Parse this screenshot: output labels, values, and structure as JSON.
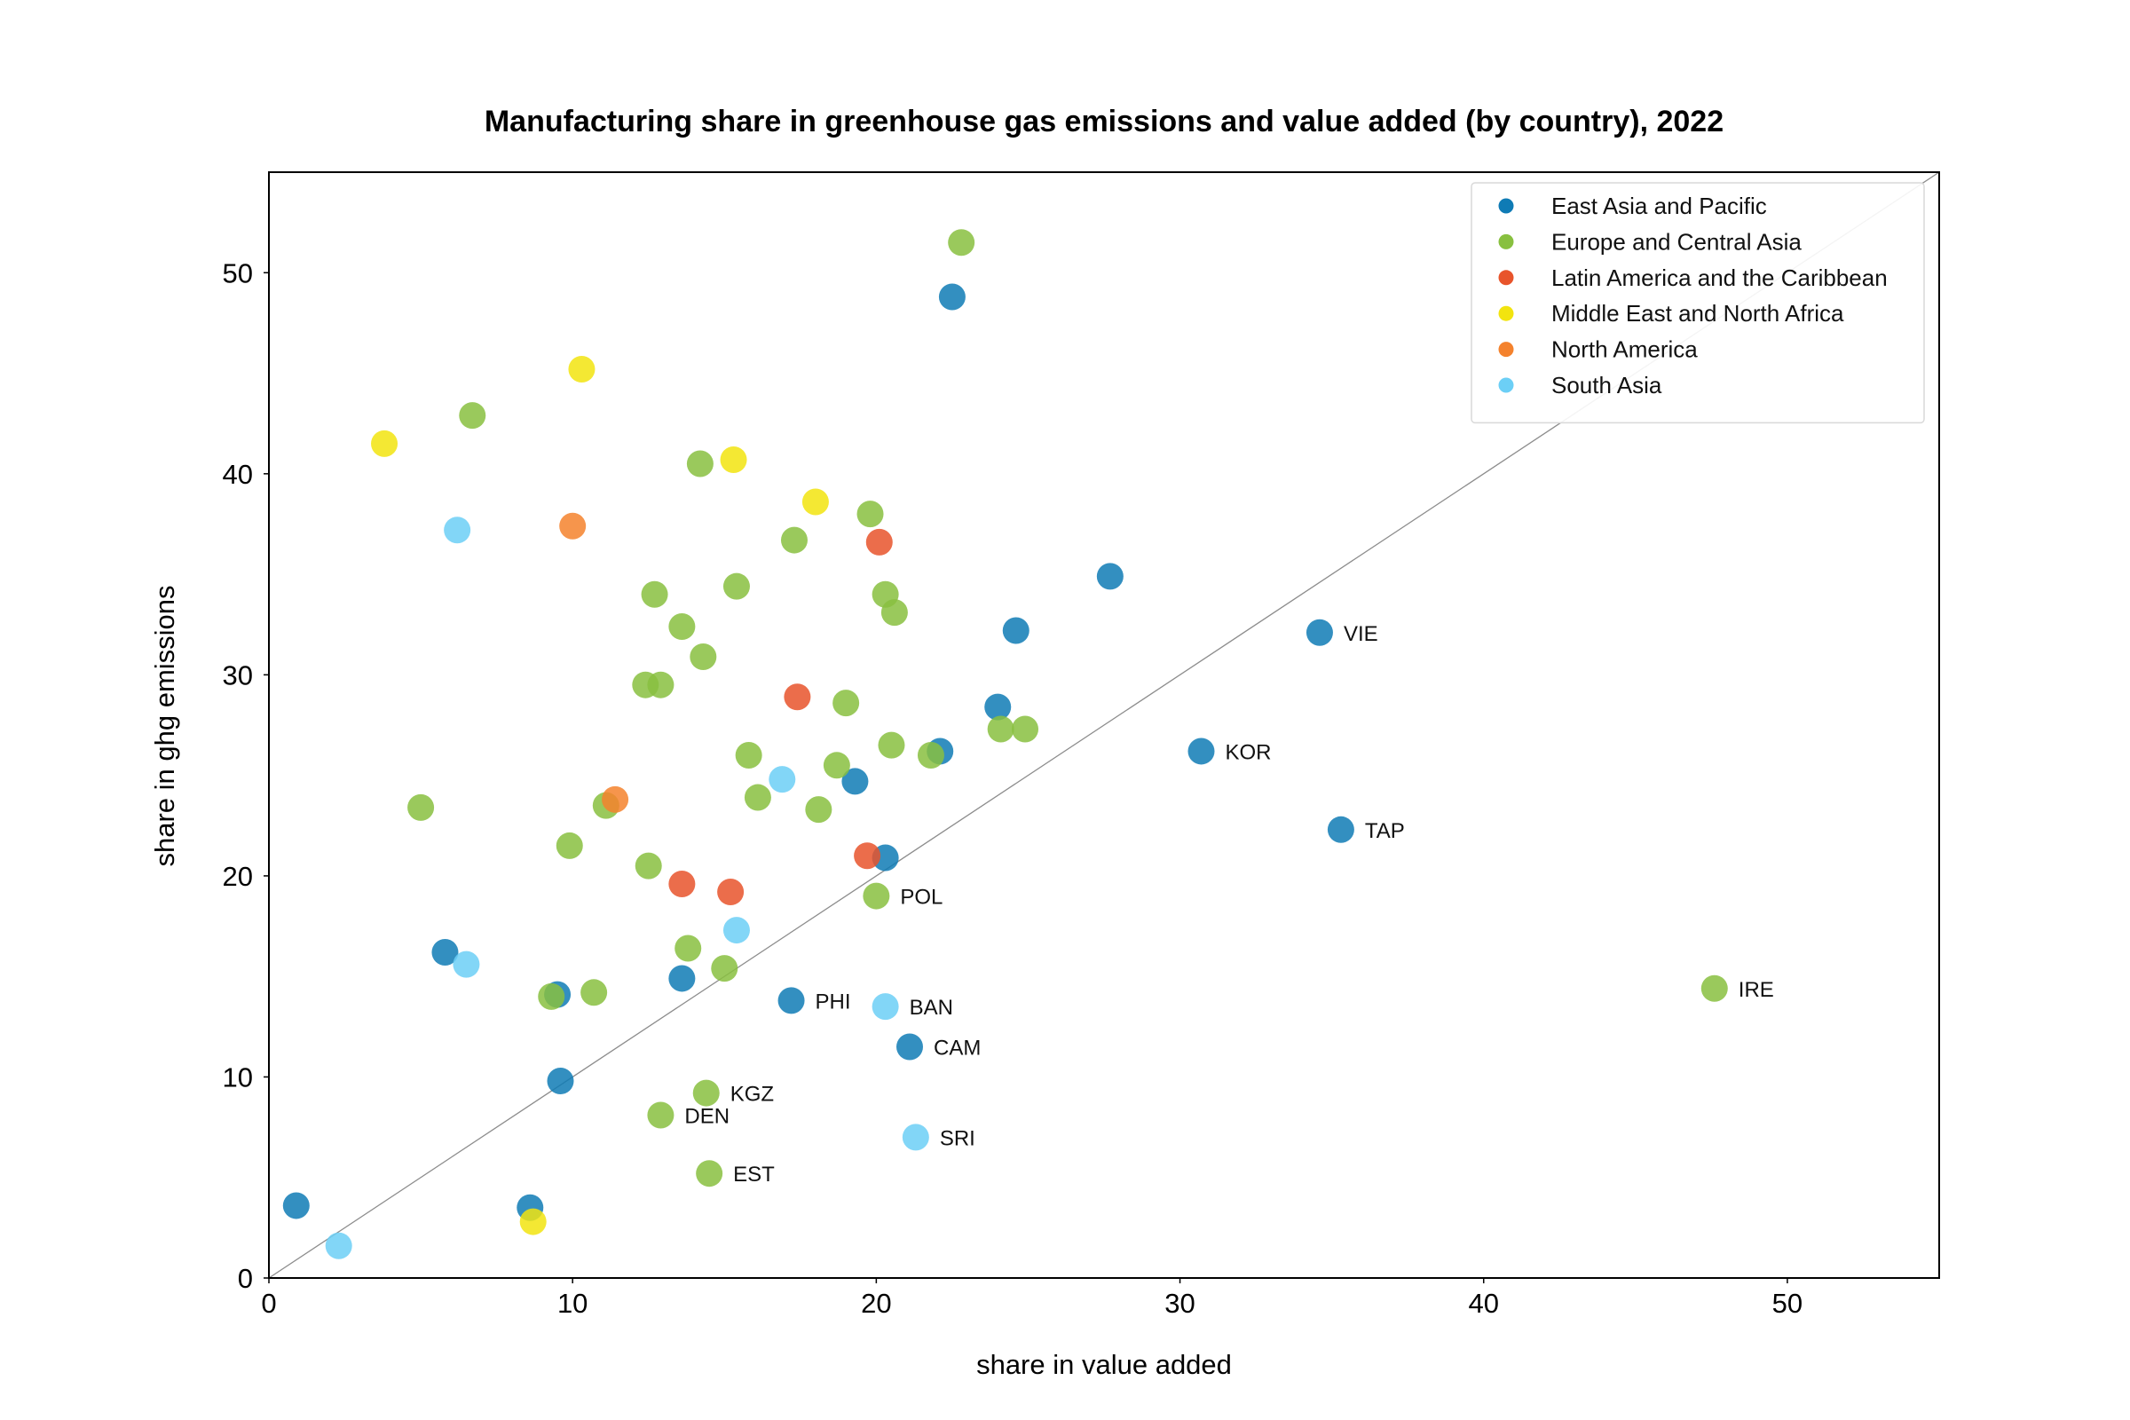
{
  "chart_data": {
    "type": "scatter",
    "title": "Manufacturing share in greenhouse gas emissions and value added (by country), 2022",
    "xlabel": "share in value added",
    "ylabel": "share in ghg emissions",
    "xlim": [
      0,
      55
    ],
    "ylim": [
      0,
      55
    ],
    "xticks": [
      0,
      10,
      20,
      30,
      40,
      50
    ],
    "yticks": [
      0,
      10,
      20,
      30,
      40,
      50
    ],
    "grid": false,
    "legend_position": "top-right",
    "reference_line": "y = x",
    "series": [
      {
        "name": "East Asia and Pacific",
        "color": "#0f7bb5",
        "points": [
          {
            "x": 0.9,
            "y": 3.6
          },
          {
            "x": 8.6,
            "y": 3.5
          },
          {
            "x": 9.6,
            "y": 9.8
          },
          {
            "x": 9.5,
            "y": 14.1
          },
          {
            "x": 5.8,
            "y": 16.2
          },
          {
            "x": 13.6,
            "y": 14.9
          },
          {
            "x": 17.2,
            "y": 13.8,
            "label": "PHI"
          },
          {
            "x": 21.1,
            "y": 11.5,
            "label": "CAM"
          },
          {
            "x": 20.3,
            "y": 20.9
          },
          {
            "x": 19.3,
            "y": 24.7
          },
          {
            "x": 22.1,
            "y": 26.2
          },
          {
            "x": 24.0,
            "y": 28.4
          },
          {
            "x": 24.6,
            "y": 32.2
          },
          {
            "x": 27.7,
            "y": 34.9
          },
          {
            "x": 22.5,
            "y": 48.8
          },
          {
            "x": 30.7,
            "y": 26.2,
            "label": "KOR"
          },
          {
            "x": 34.6,
            "y": 32.1,
            "label": "VIE"
          },
          {
            "x": 35.3,
            "y": 22.3,
            "label": "TAP"
          }
        ]
      },
      {
        "name": "Europe and Central Asia",
        "color": "#88c03f",
        "points": [
          {
            "x": 22.8,
            "y": 51.5
          },
          {
            "x": 6.7,
            "y": 42.9
          },
          {
            "x": 14.2,
            "y": 40.5
          },
          {
            "x": 19.8,
            "y": 38.0
          },
          {
            "x": 17.3,
            "y": 36.7
          },
          {
            "x": 12.7,
            "y": 34.0
          },
          {
            "x": 15.4,
            "y": 34.4
          },
          {
            "x": 20.3,
            "y": 34.0
          },
          {
            "x": 20.6,
            "y": 33.1
          },
          {
            "x": 13.6,
            "y": 32.4
          },
          {
            "x": 14.3,
            "y": 30.9
          },
          {
            "x": 12.4,
            "y": 29.5
          },
          {
            "x": 12.9,
            "y": 29.5
          },
          {
            "x": 19.0,
            "y": 28.6
          },
          {
            "x": 15.8,
            "y": 26.0
          },
          {
            "x": 18.7,
            "y": 25.5
          },
          {
            "x": 20.5,
            "y": 26.5
          },
          {
            "x": 21.8,
            "y": 26.0
          },
          {
            "x": 24.1,
            "y": 27.3
          },
          {
            "x": 24.9,
            "y": 27.3
          },
          {
            "x": 16.1,
            "y": 23.9
          },
          {
            "x": 18.1,
            "y": 23.3
          },
          {
            "x": 11.1,
            "y": 23.5
          },
          {
            "x": 5.0,
            "y": 23.4
          },
          {
            "x": 9.9,
            "y": 21.5
          },
          {
            "x": 12.5,
            "y": 20.5
          },
          {
            "x": 20.0,
            "y": 19.0,
            "label": "POL"
          },
          {
            "x": 13.8,
            "y": 16.4
          },
          {
            "x": 15.0,
            "y": 15.4
          },
          {
            "x": 9.3,
            "y": 14.0
          },
          {
            "x": 10.7,
            "y": 14.2
          },
          {
            "x": 14.4,
            "y": 9.2,
            "label": "KGZ"
          },
          {
            "x": 12.9,
            "y": 8.1,
            "label": "DEN"
          },
          {
            "x": 14.5,
            "y": 5.2,
            "label": "EST"
          },
          {
            "x": 47.6,
            "y": 14.4,
            "label": "IRE"
          }
        ]
      },
      {
        "name": "Latin America and the Caribbean",
        "color": "#e8542b",
        "points": [
          {
            "x": 20.1,
            "y": 36.6
          },
          {
            "x": 17.4,
            "y": 28.9
          },
          {
            "x": 19.7,
            "y": 21.0
          },
          {
            "x": 13.6,
            "y": 19.6
          },
          {
            "x": 15.2,
            "y": 19.2
          }
        ]
      },
      {
        "name": "Middle East and North Africa",
        "color": "#f2e40f",
        "points": [
          {
            "x": 3.8,
            "y": 41.5
          },
          {
            "x": 10.3,
            "y": 45.2
          },
          {
            "x": 15.3,
            "y": 40.7
          },
          {
            "x": 18.0,
            "y": 38.6
          },
          {
            "x": 8.7,
            "y": 2.8
          }
        ]
      },
      {
        "name": "North America",
        "color": "#f4822d",
        "points": [
          {
            "x": 10.0,
            "y": 37.4
          },
          {
            "x": 11.4,
            "y": 23.8
          }
        ]
      },
      {
        "name": "South Asia",
        "color": "#6ccff6",
        "points": [
          {
            "x": 6.2,
            "y": 37.2
          },
          {
            "x": 16.9,
            "y": 24.8
          },
          {
            "x": 6.5,
            "y": 15.6
          },
          {
            "x": 15.4,
            "y": 17.3
          },
          {
            "x": 20.3,
            "y": 13.5,
            "label": "BAN"
          },
          {
            "x": 21.3,
            "y": 7.0,
            "label": "SRI"
          },
          {
            "x": 2.3,
            "y": 1.6
          }
        ]
      }
    ]
  }
}
